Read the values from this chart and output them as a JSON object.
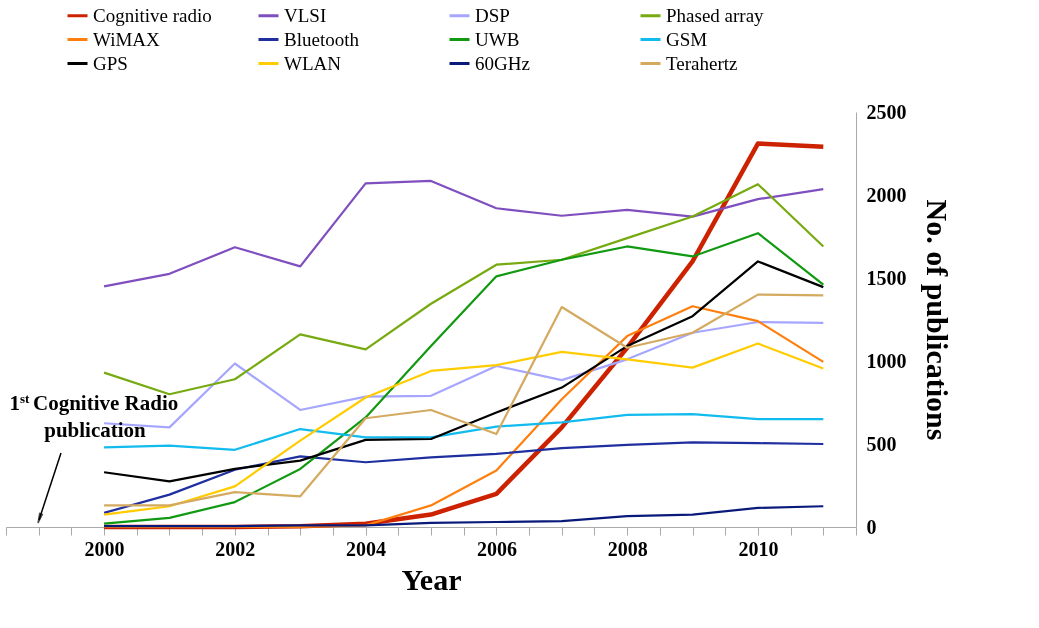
{
  "chart_data": {
    "type": "line",
    "xlabel": "Year",
    "ylabel": "No. of publications",
    "x": [
      2000,
      2001,
      2002,
      2003,
      2004,
      2005,
      2006,
      2007,
      2008,
      2009,
      2010,
      2011
    ],
    "series": [
      {
        "name": "Cognitive radio",
        "color": "#cc2200",
        "values": [
          0,
          0,
          0,
          5,
          20,
          75,
          200,
          600,
          1080,
          1600,
          2310,
          2290
        ]
      },
      {
        "name": "VLSI",
        "color": "#7f4fbf",
        "values": [
          1450,
          1525,
          1685,
          1570,
          2070,
          2085,
          1920,
          1875,
          1910,
          1870,
          1975,
          2035
        ]
      },
      {
        "name": "DSP",
        "color": "#a6a6ff",
        "values": [
          625,
          600,
          985,
          705,
          785,
          790,
          970,
          885,
          1010,
          1170,
          1235,
          1230
        ]
      },
      {
        "name": "Phased array",
        "color": "#77aa11",
        "values": [
          930,
          800,
          890,
          1160,
          1070,
          1345,
          1580,
          1610,
          1740,
          1870,
          2065,
          1690
        ]
      },
      {
        "name": "WiMAX",
        "color": "#ff7f0e",
        "values": [
          0,
          0,
          0,
          0,
          10,
          130,
          340,
          770,
          1150,
          1330,
          1240,
          995
        ]
      },
      {
        "name": "Bluetooth",
        "color": "#1f2fa0",
        "values": [
          85,
          195,
          345,
          425,
          390,
          420,
          440,
          475,
          495,
          510,
          505,
          500
        ]
      },
      {
        "name": "UWB",
        "color": "#119911",
        "values": [
          20,
          55,
          150,
          350,
          660,
          1090,
          1510,
          1610,
          1690,
          1630,
          1770,
          1460
        ]
      },
      {
        "name": "GSM",
        "color": "#11bbee",
        "values": [
          480,
          490,
          465,
          590,
          540,
          540,
          605,
          630,
          675,
          680,
          650,
          650
        ]
      },
      {
        "name": "GPS",
        "color": "#000000",
        "values": [
          330,
          275,
          350,
          400,
          525,
          530,
          690,
          840,
          1090,
          1270,
          1600,
          1445
        ]
      },
      {
        "name": "WLAN",
        "color": "#ffcc00",
        "values": [
          75,
          125,
          245,
          520,
          780,
          940,
          975,
          1055,
          1010,
          960,
          1105,
          955
        ]
      },
      {
        "name": "60GHz",
        "color": "#0a1a7a",
        "values": [
          5,
          5,
          5,
          10,
          10,
          25,
          30,
          35,
          65,
          75,
          115,
          125
        ]
      },
      {
        "name": "Terahertz",
        "color": "#d4aa60",
        "values": [
          130,
          130,
          210,
          185,
          655,
          705,
          560,
          1325,
          1080,
          1170,
          1400,
          1395
        ]
      }
    ],
    "xlim": [
      1998.5,
      2011.5
    ],
    "xticks": [
      {
        "value": 1998.5,
        "label": null
      },
      {
        "value": 1999,
        "label": null
      },
      {
        "value": 1999.5,
        "label": null
      },
      2000,
      {
        "value": 2000.5,
        "label": null
      },
      {
        "value": 2001,
        "label": null
      },
      {
        "value": 2001.5,
        "label": null
      },
      2002,
      {
        "value": 2002.5,
        "label": null
      },
      {
        "value": 2003,
        "label": null
      },
      {
        "value": 2003.5,
        "label": null
      },
      2004,
      {
        "value": 2004.5,
        "label": null
      },
      {
        "value": 2005,
        "label": null
      },
      {
        "value": 2005.5,
        "label": null
      },
      2006,
      {
        "value": 2006.5,
        "label": null
      },
      {
        "value": 2007,
        "label": null
      },
      {
        "value": 2007.5,
        "label": null
      },
      2008,
      {
        "value": 2008.5,
        "label": null
      },
      {
        "value": 2009,
        "label": null
      },
      {
        "value": 2009.5,
        "label": null
      },
      2010,
      {
        "value": 2010.5,
        "label": null
      },
      {
        "value": 2011,
        "label": null
      },
      {
        "value": 2011.5,
        "label": null
      }
    ],
    "ylim": [
      0,
      2500
    ],
    "yticks": [
      0,
      500,
      1000,
      1500,
      2000,
      2500
    ],
    "grid": false,
    "legend": "top",
    "marker": "none",
    "line_style": "solid",
    "annotations": [
      "1$^{st}$ Cognitive Radio publication"
    ]
  }
}
